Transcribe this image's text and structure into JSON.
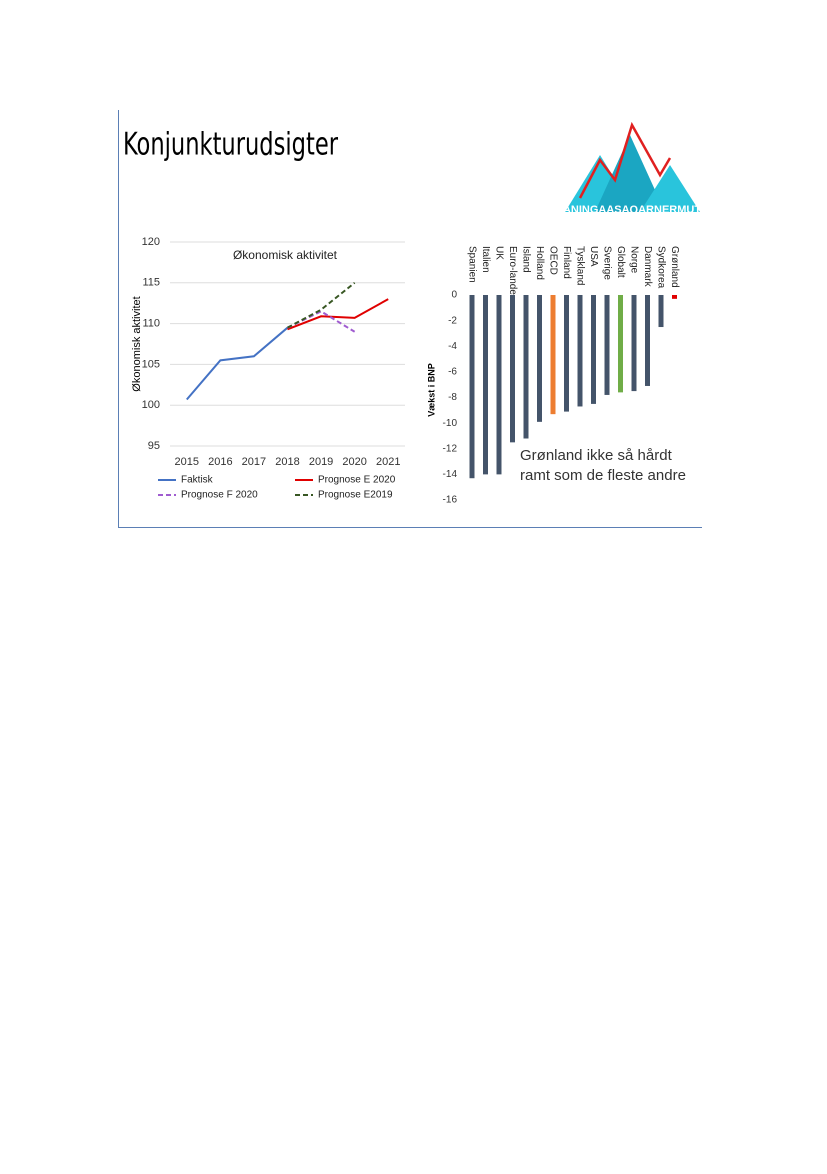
{
  "slide": {
    "title": "Konjunkturudsigter",
    "logo": "ANINGAASAQARNERMUT"
  },
  "chart_data": [
    {
      "type": "line",
      "title": "Økonomisk aktivitet",
      "y_label": "Økonomisk aktivitet",
      "categories": [
        "2015",
        "2016",
        "2017",
        "2018",
        "2019",
        "2020",
        "2021"
      ],
      "ylim": [
        95,
        120
      ],
      "yticks": [
        95,
        100,
        105,
        110,
        115,
        120
      ],
      "grid": true,
      "series": [
        {
          "name": "Faktisk",
          "color": "#4472c4",
          "style": "solid",
          "values": [
            100.7,
            105.5,
            106,
            109.5,
            null,
            null,
            null
          ]
        },
        {
          "name": "Prognose E 2020",
          "color": "#e00000",
          "style": "solid",
          "values": [
            null,
            null,
            null,
            109.3,
            110.9,
            110.7,
            113
          ]
        },
        {
          "name": "Prognose F 2020",
          "color": "#a05cd0",
          "style": "dashed",
          "values": [
            null,
            null,
            null,
            109.5,
            111.5,
            109,
            null
          ]
        },
        {
          "name": "Prognose E2019",
          "color": "#385723",
          "style": "dashed",
          "values": [
            null,
            null,
            null,
            109.5,
            111.7,
            115,
            null
          ]
        }
      ]
    },
    {
      "type": "bar",
      "y_label": "Vækst i BNP",
      "categories": [
        "Spanien",
        "Italien",
        "UK",
        "Euro-lande",
        "Island",
        "Holland",
        "OECD",
        "Finland",
        "Tyskland",
        "USA",
        "Sverige",
        "Globalt",
        "Norge",
        "Danmark",
        "Sydkorea",
        "Grønland"
      ],
      "values": [
        -14.3,
        -14,
        -14,
        -11.5,
        -11.2,
        -9.9,
        -9.3,
        -9.1,
        -8.7,
        -8.5,
        -7.8,
        -7.6,
        -7.5,
        -7.1,
        -2.5,
        -0.3
      ],
      "colors": [
        "#44546a",
        "#44546a",
        "#44546a",
        "#44546a",
        "#44546a",
        "#44546a",
        "#ed7d31",
        "#44546a",
        "#44546a",
        "#44546a",
        "#44546a",
        "#70ad47",
        "#44546a",
        "#44546a",
        "#44546a",
        "#e00000"
      ],
      "ylim": [
        -16,
        0
      ],
      "yticks": [
        -16,
        -14,
        -12,
        -10,
        -8,
        -6,
        -4,
        -2,
        0
      ],
      "grid": false,
      "annotation": [
        "Grønland ikke så hårdt",
        "ramt som de fleste andre"
      ]
    }
  ]
}
